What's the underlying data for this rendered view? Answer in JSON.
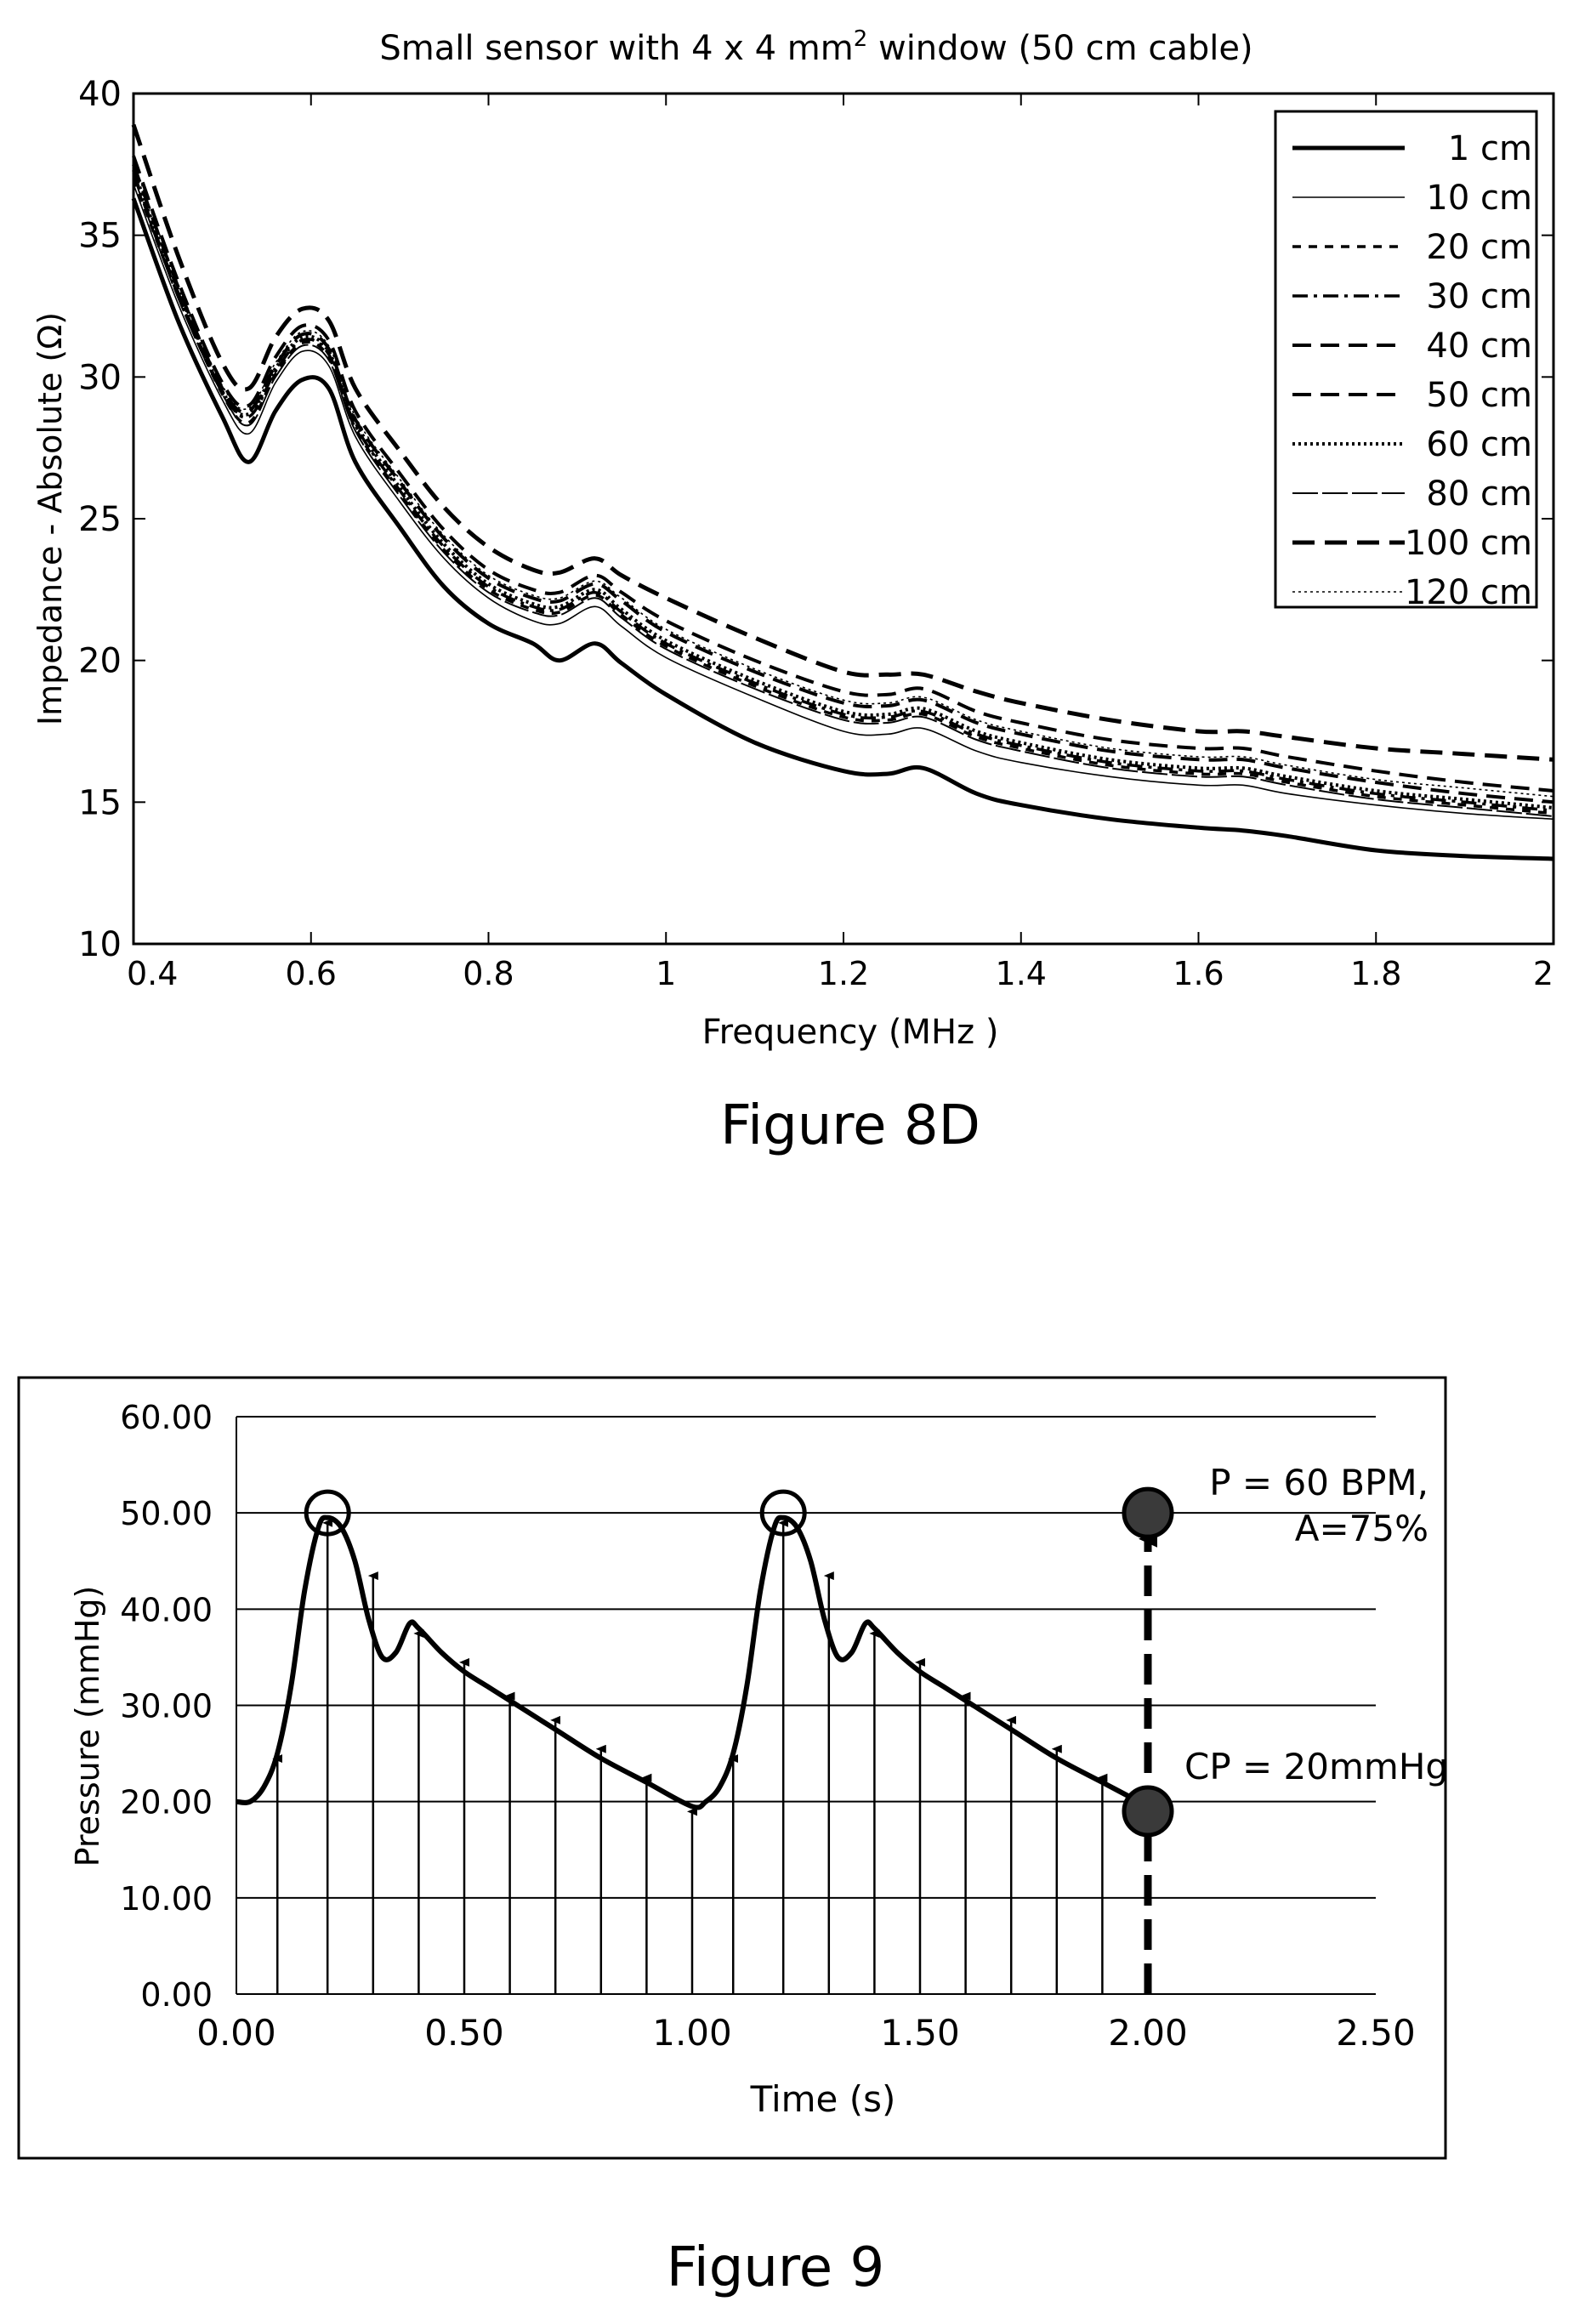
{
  "chart_data": [
    {
      "type": "line",
      "title": "Small sensor with 4 x 4 mm",
      "title_sup": "2",
      "title_tail": " window (50 cm cable)",
      "xlabel": "Frequency (MHz )",
      "ylabel": "Impedance - Absolute (Ω)",
      "xlim": [
        0.4,
        2
      ],
      "ylim": [
        10,
        40
      ],
      "xticks": [
        "0.4",
        "0.6",
        "0.8",
        "1",
        "1.2",
        "1.4",
        "1.6",
        "1.8",
        "2"
      ],
      "yticks": [
        "10",
        "15",
        "20",
        "25",
        "30",
        "35",
        "40"
      ],
      "legend_position": "top-right",
      "figure_caption": "Figure 8D",
      "x": [
        0.4,
        0.45,
        0.5,
        0.53,
        0.56,
        0.59,
        0.62,
        0.65,
        0.7,
        0.75,
        0.8,
        0.85,
        0.88,
        0.92,
        0.95,
        1.0,
        1.1,
        1.2,
        1.25,
        1.29,
        1.35,
        1.4,
        1.5,
        1.6,
        1.65,
        1.7,
        1.8,
        1.9,
        2.0
      ],
      "series": [
        {
          "name": "1 cm",
          "style": "thick-solid",
          "values": [
            36.3,
            32.0,
            28.6,
            27.0,
            28.8,
            29.9,
            29.6,
            27.0,
            24.7,
            22.6,
            21.3,
            20.6,
            20.0,
            20.6,
            19.9,
            18.8,
            17.1,
            16.1,
            16.0,
            16.2,
            15.3,
            14.9,
            14.4,
            14.1,
            14.0,
            13.8,
            13.3,
            13.1,
            13.0
          ]
        },
        {
          "name": "10 cm",
          "style": "thin-solid",
          "values": [
            36.8,
            32.6,
            29.2,
            28.0,
            29.8,
            30.9,
            30.4,
            27.9,
            25.6,
            23.6,
            22.2,
            21.4,
            21.3,
            21.9,
            21.2,
            20.1,
            18.7,
            17.5,
            17.4,
            17.6,
            16.8,
            16.4,
            15.9,
            15.6,
            15.6,
            15.3,
            14.9,
            14.6,
            14.4
          ]
        },
        {
          "name": "20 cm",
          "style": "short-dash",
          "values": [
            37.0,
            32.9,
            29.4,
            28.4,
            30.1,
            31.2,
            30.7,
            28.2,
            25.9,
            23.9,
            22.5,
            21.8,
            21.7,
            22.3,
            21.6,
            20.5,
            19.1,
            18.0,
            17.9,
            18.1,
            17.3,
            16.9,
            16.3,
            16.0,
            16.0,
            15.7,
            15.2,
            14.9,
            14.6
          ]
        },
        {
          "name": "30 cm",
          "style": "dash-dot",
          "values": [
            37.2,
            33.0,
            29.5,
            28.6,
            30.2,
            31.3,
            30.8,
            28.3,
            26.0,
            24.0,
            22.6,
            21.9,
            21.8,
            22.4,
            21.7,
            20.6,
            19.2,
            18.1,
            18.0,
            18.2,
            17.4,
            17.0,
            16.4,
            16.1,
            16.1,
            15.8,
            15.3,
            15.0,
            14.7
          ]
        },
        {
          "name": "40 cm",
          "style": "long-dash",
          "values": [
            37.5,
            33.2,
            29.6,
            28.8,
            30.4,
            31.5,
            31.0,
            28.5,
            26.3,
            24.3,
            22.9,
            22.2,
            22.1,
            22.7,
            22.1,
            21.0,
            19.6,
            18.5,
            18.4,
            18.6,
            17.8,
            17.4,
            16.8,
            16.5,
            16.5,
            16.2,
            15.7,
            15.3,
            15.0
          ]
        },
        {
          "name": "50 cm",
          "style": "long-dash",
          "values": [
            37.8,
            33.4,
            29.8,
            29.0,
            30.7,
            31.8,
            31.3,
            28.8,
            26.6,
            24.6,
            23.2,
            22.5,
            22.4,
            23.0,
            22.4,
            21.4,
            20.0,
            18.9,
            18.8,
            19.0,
            18.2,
            17.8,
            17.2,
            16.9,
            16.9,
            16.6,
            16.1,
            15.7,
            15.4
          ]
        },
        {
          "name": "60 cm",
          "style": "dotted",
          "values": [
            37.3,
            33.1,
            29.5,
            28.7,
            30.3,
            31.4,
            30.9,
            28.4,
            26.1,
            24.1,
            22.7,
            22.0,
            21.9,
            22.5,
            21.8,
            20.7,
            19.3,
            18.2,
            18.1,
            18.3,
            17.5,
            17.1,
            16.5,
            16.2,
            16.2,
            15.9,
            15.4,
            15.1,
            14.8
          ]
        },
        {
          "name": "80 cm",
          "style": "thin-long-dash",
          "values": [
            37.1,
            32.8,
            29.4,
            28.3,
            30.0,
            31.1,
            30.6,
            28.1,
            25.8,
            23.8,
            22.4,
            21.7,
            21.6,
            22.2,
            21.5,
            20.4,
            19.0,
            17.9,
            17.8,
            18.0,
            17.2,
            16.8,
            16.2,
            15.9,
            15.9,
            15.6,
            15.1,
            14.8,
            14.5
          ]
        },
        {
          "name": "100 cm",
          "style": "thick-dash",
          "values": [
            38.9,
            34.3,
            30.5,
            29.6,
            31.4,
            32.4,
            32.0,
            29.6,
            27.4,
            25.4,
            24.0,
            23.2,
            23.1,
            23.6,
            23.0,
            22.2,
            20.8,
            19.6,
            19.5,
            19.5,
            18.9,
            18.5,
            17.9,
            17.5,
            17.5,
            17.3,
            16.9,
            16.7,
            16.5
          ]
        },
        {
          "name": "120 cm",
          "style": "fine-dotted",
          "values": [
            37.6,
            33.3,
            29.7,
            28.9,
            30.5,
            31.6,
            31.1,
            28.6,
            26.4,
            24.4,
            23.0,
            22.3,
            22.2,
            22.8,
            22.2,
            21.1,
            19.7,
            18.6,
            18.5,
            18.7,
            17.9,
            17.5,
            16.9,
            16.6,
            16.6,
            16.3,
            15.8,
            15.5,
            15.2
          ]
        }
      ]
    },
    {
      "type": "line",
      "xlabel": "Time (s)",
      "ylabel": "Pressure (mmHg)",
      "xlim": [
        0,
        2.5
      ],
      "ylim": [
        0,
        60
      ],
      "xticks": [
        "0.00",
        "0.50",
        "1.00",
        "1.50",
        "2.00",
        "2.50"
      ],
      "yticks": [
        "0.00",
        "10.00",
        "20.00",
        "30.00",
        "40.00",
        "50.00",
        "60.00"
      ],
      "grid": "horizontal",
      "figure_caption": "Figure 9",
      "annotations": {
        "rate": "P = 60 BPM,",
        "amplitude": "A=75%",
        "contact_pressure": "CP = 20mmHg"
      },
      "waveform": {
        "x": [
          0.0,
          0.03,
          0.06,
          0.09,
          0.12,
          0.15,
          0.18,
          0.2,
          0.23,
          0.26,
          0.29,
          0.32,
          0.35,
          0.38,
          0.4,
          0.45,
          0.5,
          0.55,
          0.6,
          0.7,
          0.8,
          0.9,
          1.0,
          1.03,
          1.06,
          1.09,
          1.12,
          1.15,
          1.18,
          1.2,
          1.23,
          1.26,
          1.29,
          1.32,
          1.35,
          1.38,
          1.4,
          1.45,
          1.5,
          1.55,
          1.6,
          1.7,
          1.8,
          1.9,
          2.0
        ],
        "y": [
          20.0,
          20.0,
          21.5,
          25.0,
          32.0,
          42.0,
          48.5,
          49.5,
          48.5,
          45.0,
          39.0,
          35.0,
          35.5,
          38.5,
          38.0,
          35.5,
          33.5,
          32.0,
          30.5,
          27.5,
          24.5,
          22.0,
          19.5,
          20.0,
          21.5,
          25.0,
          32.0,
          42.0,
          48.5,
          49.5,
          48.5,
          45.0,
          39.0,
          35.0,
          35.5,
          38.5,
          38.0,
          35.5,
          33.5,
          32.0,
          30.5,
          27.5,
          24.5,
          22.0,
          19.5
        ]
      },
      "arrows": {
        "x": [
          0.09,
          0.2,
          0.3,
          0.4,
          0.5,
          0.6,
          0.7,
          0.8,
          0.9,
          1.0,
          1.09,
          1.2,
          1.3,
          1.4,
          1.5,
          1.6,
          1.7,
          1.8,
          1.9
        ],
        "y": [
          25.0,
          49.5,
          44.0,
          38.0,
          35.0,
          31.5,
          29.0,
          26.0,
          23.0,
          19.5,
          25.0,
          49.5,
          44.0,
          38.0,
          35.0,
          31.5,
          29.0,
          26.0,
          23.0
        ]
      },
      "open_markers": [
        {
          "x": 0.2,
          "y": 50
        },
        {
          "x": 1.2,
          "y": 50
        }
      ],
      "filled_markers": [
        {
          "x": 2.0,
          "y": 50
        },
        {
          "x": 2.0,
          "y": 19
        }
      ],
      "dashed_arrow": {
        "x": 2.0,
        "from": 0,
        "to": 48
      }
    }
  ]
}
